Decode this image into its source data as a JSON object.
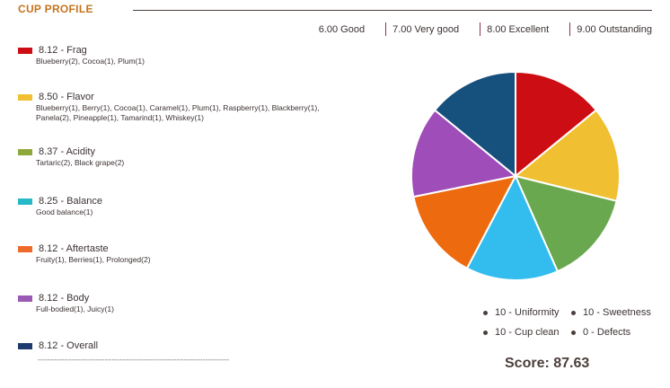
{
  "header": {
    "title": "CUP PROFILE"
  },
  "scale": [
    {
      "label": "6.00 Good"
    },
    {
      "label": "7.00 Very good"
    },
    {
      "label": "8.00 Excellent"
    },
    {
      "label": "9.00 Outstanding"
    }
  ],
  "chart_data": {
    "type": "pie",
    "categories": [
      "Frag",
      "Flavor",
      "Acidity",
      "Balance",
      "Aftertaste",
      "Body",
      "Overall"
    ],
    "values": [
      8.12,
      8.5,
      8.37,
      8.25,
      8.12,
      8.12,
      8.12
    ],
    "colors": [
      "#cc0e14",
      "#f0c032",
      "#6aa84f",
      "#33bdee",
      "#ed6b0e",
      "#9f4db8",
      "#16507c"
    ],
    "legend": [
      {
        "label": "8.12 - Frag",
        "desc": "Blueberry(2), Cocoa(1), Plum(1)",
        "color": "#cc0e14"
      },
      {
        "label": "8.50 - Flavor",
        "desc": "Blueberry(1), Berry(1), Cocoa(1), Caramel(1), Plum(1), Raspberry(1), Blackberry(1), Panela(2), Pineapple(1), Tamarind(1), Whiskey(1)",
        "color": "#f0c032"
      },
      {
        "label": "8.37 - Acidity",
        "desc": "Tartaric(2), Black grape(2)",
        "color": "#8fa83c"
      },
      {
        "label": "8.25 - Balance",
        "desc": "Good balance(1)",
        "color": "#26b9c7"
      },
      {
        "label": "8.12 - Aftertaste",
        "desc": "Fruity(1), Berries(1), Prolonged(2)",
        "color": "#ee6a2a"
      },
      {
        "label": "8.12 - Body",
        "desc": "Full-bodied(1), Juicy(1)",
        "color": "#9b59b6"
      },
      {
        "label": "8.12 - Overall",
        "desc": "",
        "color": "#1e3a6e"
      }
    ]
  },
  "legend_divider": "--------------------------------------------------------------------------------",
  "metrics": [
    {
      "label": "10 - Uniformity"
    },
    {
      "label": "10 - Sweetness"
    },
    {
      "label": "10 - Cup clean"
    },
    {
      "label": "0 - Defects"
    }
  ],
  "score": {
    "label": "Score: 87.63"
  }
}
